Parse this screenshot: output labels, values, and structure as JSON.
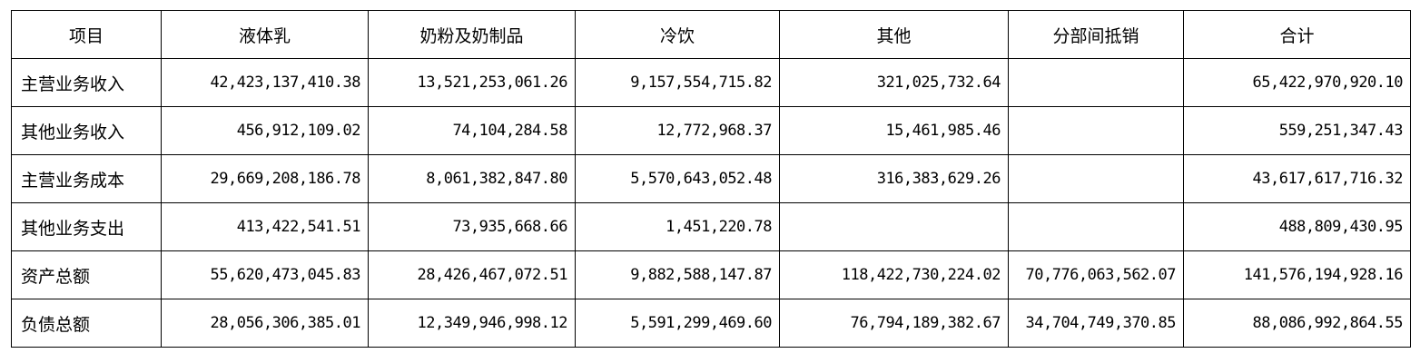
{
  "table": {
    "headers": [
      "项目",
      "液体乳",
      "奶粉及奶制品",
      "冷饮",
      "其他",
      "分部间抵销",
      "合计"
    ],
    "rows": [
      {
        "label": "主营业务收入",
        "cells": [
          "42,423,137,410.38",
          "13,521,253,061.26",
          "9,157,554,715.82",
          "321,025,732.64",
          "",
          "65,422,970,920.10"
        ]
      },
      {
        "label": "其他业务收入",
        "cells": [
          "456,912,109.02",
          "74,104,284.58",
          "12,772,968.37",
          "15,461,985.46",
          "",
          "559,251,347.43"
        ]
      },
      {
        "label": "主营业务成本",
        "cells": [
          "29,669,208,186.78",
          "8,061,382,847.80",
          "5,570,643,052.48",
          "316,383,629.26",
          "",
          "43,617,617,716.32"
        ]
      },
      {
        "label": "其他业务支出",
        "cells": [
          "413,422,541.51",
          "73,935,668.66",
          "1,451,220.78",
          "",
          "",
          "488,809,430.95"
        ]
      },
      {
        "label": "资产总额",
        "cells": [
          "55,620,473,045.83",
          "28,426,467,072.51",
          "9,882,588,147.87",
          "118,422,730,224.02",
          "70,776,063,562.07",
          "141,576,194,928.16"
        ]
      },
      {
        "label": "负债总额",
        "cells": [
          "28,056,306,385.01",
          "12,349,946,998.12",
          "5,591,299,469.60",
          "76,794,189,382.67",
          "34,704,749,370.85",
          "88,086,992,864.55"
        ]
      }
    ]
  }
}
